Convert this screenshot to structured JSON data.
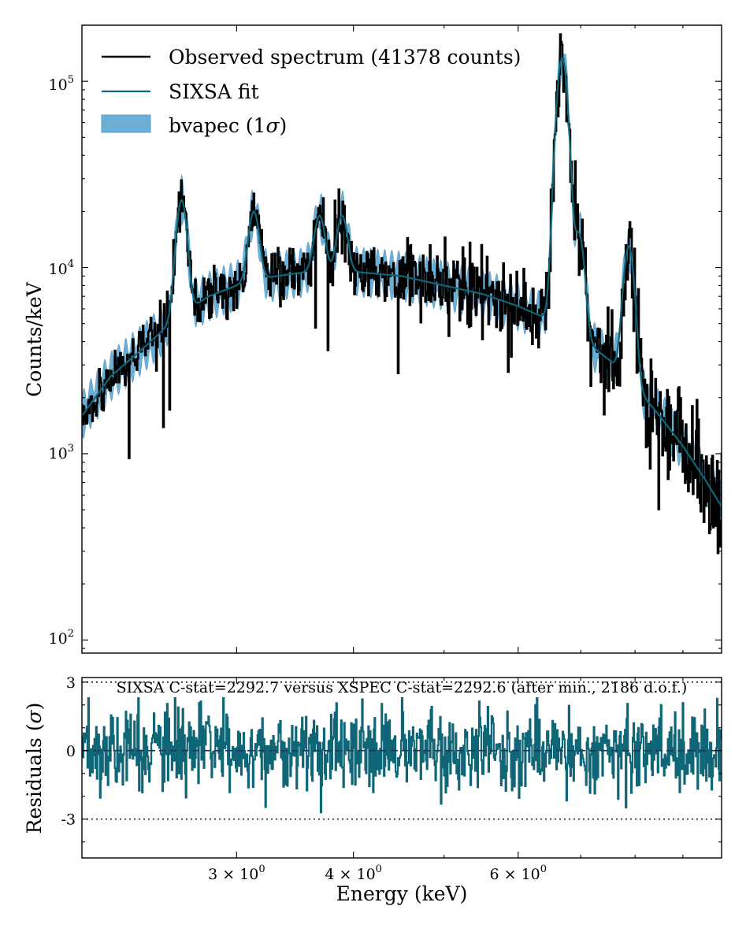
{
  "chart_data": [
    {
      "type": "line",
      "panel": "spectrum",
      "title": "",
      "xlabel": "",
      "ylabel": "Counts/keV",
      "xscale": "log",
      "yscale": "log",
      "xlim": [
        2.05,
        9.9
      ],
      "ylim": [
        85,
        200000
      ],
      "yticks": [
        {
          "value": 100,
          "base": "10",
          "exp": "2"
        },
        {
          "value": 1000,
          "base": "10",
          "exp": "3"
        },
        {
          "value": 10000,
          "base": "10",
          "exp": "4"
        },
        {
          "value": 100000,
          "base": "10",
          "exp": "5"
        }
      ],
      "continuum": {
        "x": [
          2.05,
          2.2,
          2.4,
          2.6,
          2.8,
          3.0,
          3.3,
          3.6,
          4.0,
          4.5,
          5.0,
          5.5,
          6.0,
          6.5,
          7.0,
          7.5,
          8.0,
          8.5,
          9.0,
          9.5,
          9.9
        ],
        "y": [
          1600,
          2600,
          3800,
          5500,
          7000,
          8000,
          9000,
          9500,
          9500,
          9000,
          8000,
          7200,
          6200,
          5200,
          4200,
          3200,
          2300,
          1600,
          1100,
          730,
          520
        ]
      },
      "emission_lines": [
        {
          "energy": 2.62,
          "peak": 23000
        },
        {
          "energy": 3.13,
          "peak": 20000
        },
        {
          "energy": 3.32,
          "peak": 9000
        },
        {
          "energy": 3.68,
          "peak": 19000
        },
        {
          "energy": 3.89,
          "peak": 19000
        },
        {
          "energy": 6.7,
          "peak": 105000
        },
        {
          "energy": 6.65,
          "peak": 38000
        },
        {
          "energy": 6.97,
          "peak": 15000
        },
        {
          "energy": 7.88,
          "peak": 13000
        }
      ],
      "noise_fraction": 0.25,
      "total_counts": 41378,
      "legend_position": "top-left",
      "series": [
        {
          "name": "Observed spectrum (41378 counts)",
          "color": "#000000",
          "style": "line"
        },
        {
          "name": "SIXSA fit",
          "color": "#0e6677",
          "style": "line"
        },
        {
          "name": "bvapec (1σ)",
          "name_prefix": "bvapec (1",
          "name_sigma": "σ",
          "name_suffix": ")",
          "color": "#6baed6",
          "style": "band"
        }
      ]
    },
    {
      "type": "line",
      "panel": "residuals",
      "title": "SIXSA C-stat=2292.7 versus XSPEC C-stat=2292.6 (after min., 2186 d.o.f.)",
      "xlabel": "Energy (keV)",
      "ylabel_prefix": "Residuals (",
      "ylabel_sigma": "σ",
      "ylabel_suffix": ")",
      "xscale": "log",
      "xlim": [
        2.05,
        9.9
      ],
      "ylim": [
        -4.7,
        3.2
      ],
      "yticks": [
        {
          "value": 3,
          "label": "3"
        },
        {
          "value": 0,
          "label": "0"
        },
        {
          "value": -3,
          "label": "-3"
        }
      ],
      "xticks": [
        {
          "value": 3,
          "mant": "3 × 10",
          "exp": "0"
        },
        {
          "value": 4,
          "mant": "4 × 10",
          "exp": "0"
        },
        {
          "value": 6,
          "mant": "6 × 10",
          "exp": "0"
        }
      ],
      "reference_lines": [
        3,
        0,
        -3
      ],
      "residual_spread_sigma": 0.9,
      "series_color": "#0e6677"
    }
  ]
}
